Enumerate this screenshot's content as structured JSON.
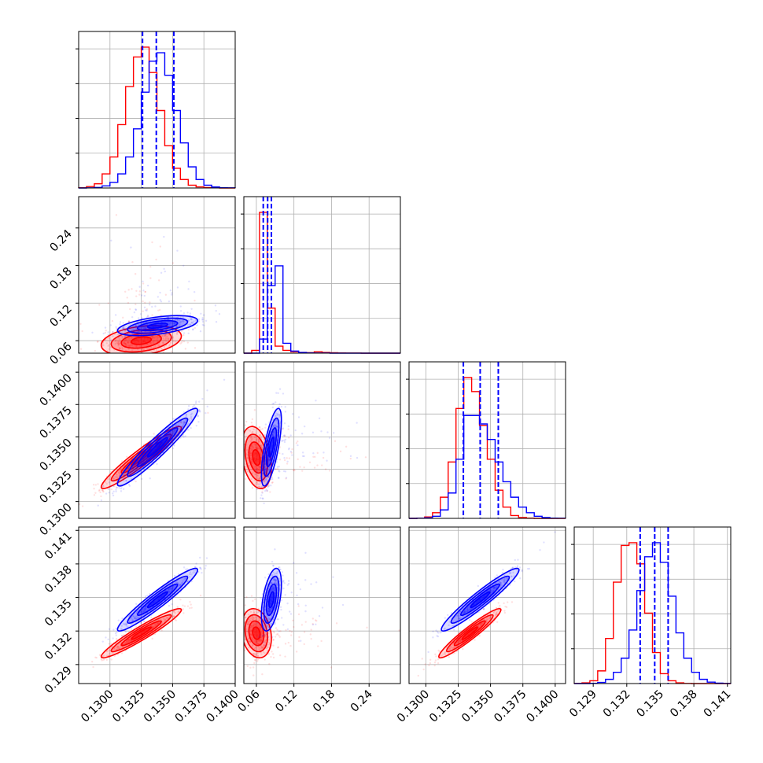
{
  "chart_data": {
    "type": "corner",
    "grid": true,
    "colors": {
      "series_a": "#ff0000",
      "series_b": "#0000ff",
      "quantile_lines": "#0000ff"
    },
    "series": [
      {
        "color": "#ff0000",
        "means": [
          0.1325,
          0.06,
          0.1334,
          0.1318
        ],
        "stds": [
          0.0016,
          0.012,
          0.0012,
          0.0011
        ]
      },
      {
        "color": "#0000ff",
        "means": [
          0.1338,
          0.084,
          0.1342,
          0.1348
        ],
        "stds": [
          0.0016,
          0.008,
          0.0015,
          0.0014
        ]
      }
    ],
    "correlations": {
      "1-0": [
        0.3,
        0.5
      ],
      "2-0": [
        0.95,
        0.95
      ],
      "2-1": [
        -0.3,
        0.7
      ],
      "3-0": [
        0.95,
        0.95
      ],
      "3-1": [
        -0.2,
        0.5
      ],
      "3-2": [
        0.95,
        0.95
      ]
    },
    "parameters": [
      {
        "range": [
          0.1275,
          0.14
        ],
        "ticks": [
          "0.1300",
          "0.1325",
          "0.1350",
          "0.1375",
          "0.1400"
        ],
        "tick_values": [
          0.13,
          0.1325,
          0.135,
          0.1375,
          0.14
        ]
      },
      {
        "range": [
          0.04,
          0.29
        ],
        "ticks": [
          "0.06",
          "0.12",
          "0.18",
          "0.24"
        ],
        "tick_values": [
          0.06,
          0.12,
          0.18,
          0.24
        ]
      },
      {
        "range": [
          0.1287,
          0.1408
        ],
        "ticks": [
          "0.1300",
          "0.1325",
          "0.1350",
          "0.1375",
          "0.1400"
        ],
        "tick_values": [
          0.13,
          0.1325,
          0.135,
          0.1375,
          0.14
        ]
      },
      {
        "range": [
          0.1273,
          0.1413
        ],
        "ticks": [
          "0.129",
          "0.132",
          "0.135",
          "0.138",
          "0.141"
        ],
        "tick_values": [
          0.129,
          0.132,
          0.135,
          0.138,
          0.141
        ]
      }
    ],
    "quantiles": [
      [
        0.1326,
        0.1337,
        0.1351
      ],
      [
        0.071,
        0.078,
        0.084
      ],
      [
        0.1329,
        0.1342,
        0.1356
      ],
      [
        0.1332,
        0.1345,
        0.1357
      ]
    ],
    "histograms": [
      {
        "bins": 20,
        "series_a": [
          0.002,
          0.01,
          0.03,
          0.1,
          0.22,
          0.45,
          0.72,
          0.93,
          1.0,
          0.82,
          0.55,
          0.3,
          0.14,
          0.06,
          0.02,
          0.008,
          0.003,
          0.001,
          0,
          0
        ],
        "series_b": [
          0,
          0.001,
          0.004,
          0.015,
          0.04,
          0.1,
          0.22,
          0.42,
          0.68,
          0.9,
          0.96,
          0.8,
          0.55,
          0.32,
          0.15,
          0.06,
          0.02,
          0.007,
          0.002,
          0.001
        ]
      },
      {
        "bins": 20,
        "series_a": [
          0,
          0.02,
          1.0,
          0.32,
          0.05,
          0.02,
          0.01,
          0.005,
          0.004,
          0.01,
          0.005,
          0.003,
          0.002,
          0.001,
          0.001,
          0,
          0,
          0,
          0,
          0
        ],
        "series_b": [
          0,
          0,
          0.1,
          0.48,
          0.62,
          0.07,
          0.015,
          0.005,
          0.002,
          0.001,
          0.001,
          0,
          0,
          0,
          0,
          0,
          0,
          0,
          0,
          0
        ]
      },
      {
        "bins": 20,
        "series_a": [
          0,
          0.002,
          0.01,
          0.04,
          0.15,
          0.4,
          0.78,
          1.0,
          0.9,
          0.66,
          0.42,
          0.2,
          0.08,
          0.02,
          0.006,
          0.002,
          0,
          0,
          0,
          0
        ],
        "series_b": [
          0,
          0.001,
          0.004,
          0.015,
          0.06,
          0.18,
          0.42,
          0.73,
          0.73,
          0.67,
          0.56,
          0.4,
          0.26,
          0.15,
          0.08,
          0.04,
          0.015,
          0.006,
          0.002,
          0.001
        ]
      },
      {
        "bins": 20,
        "series_a": [
          0.001,
          0.005,
          0.02,
          0.09,
          0.32,
          0.72,
          0.98,
          1.0,
          0.85,
          0.5,
          0.22,
          0.07,
          0.02,
          0.005,
          0.001,
          0,
          0,
          0,
          0,
          0
        ],
        "series_b": [
          0,
          0,
          0.002,
          0.008,
          0.03,
          0.08,
          0.18,
          0.38,
          0.66,
          0.9,
          1.0,
          0.86,
          0.62,
          0.36,
          0.18,
          0.08,
          0.03,
          0.01,
          0.003,
          0.001
        ]
      }
    ]
  }
}
